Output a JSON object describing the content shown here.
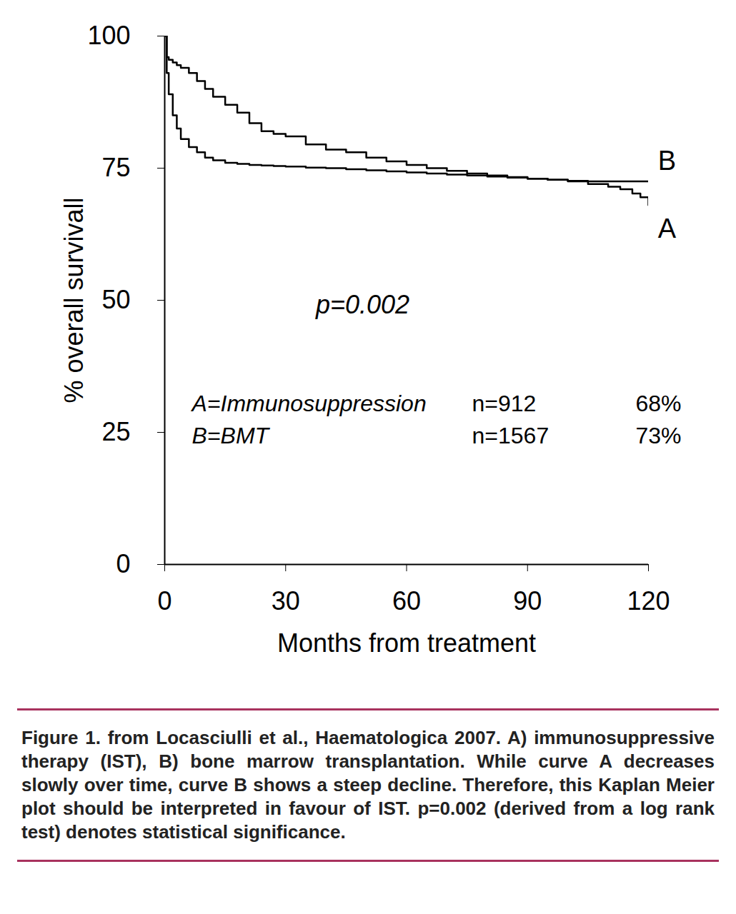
{
  "chart_data": {
    "type": "line",
    "x_label": "Months from treatment",
    "y_label": "% overall survivall",
    "xlim": [
      0,
      120
    ],
    "ylim": [
      0,
      100
    ],
    "xticks": [
      0,
      30,
      60,
      90,
      120
    ],
    "yticks": [
      0,
      25,
      50,
      75,
      100
    ],
    "grid": false,
    "line_style": "step",
    "x": [
      0,
      0.5,
      1,
      2,
      3,
      4,
      6,
      8,
      10,
      12,
      15,
      18,
      21,
      24,
      27,
      30,
      35,
      40,
      45,
      50,
      55,
      60,
      65,
      70,
      75,
      80,
      85,
      90,
      95,
      100,
      105,
      110,
      113,
      116,
      118,
      120
    ],
    "series": [
      {
        "name": "A",
        "color": "#000000",
        "values": [
          100,
          93,
          89,
          85,
          82.5,
          80.5,
          79,
          78,
          77,
          76.5,
          76,
          75.8,
          75.6,
          75.5,
          75.4,
          75.3,
          75.1,
          75,
          74.8,
          74.6,
          74.4,
          74.2,
          74,
          73.8,
          73.6,
          73.4,
          73.2,
          73,
          72.8,
          72.5,
          72,
          71.5,
          71,
          70.2,
          69.5,
          68
        ]
      },
      {
        "name": "B",
        "color": "#000000",
        "values": [
          100,
          96,
          95.5,
          95,
          94.5,
          94,
          93,
          91.5,
          90,
          88.5,
          87,
          85.5,
          83.5,
          82,
          81.5,
          81,
          79.5,
          78.5,
          78,
          77,
          76.3,
          75.6,
          75,
          74.5,
          74,
          73.6,
          73.3,
          73,
          72.8,
          72.6,
          72.5,
          72.5,
          72.5,
          72.5,
          72.5,
          72.5
        ]
      }
    ],
    "annotations": [
      "p=0.002"
    ],
    "table": {
      "rows": [
        [
          "A=Immunosuppression",
          "n=912",
          "68%"
        ],
        [
          "B=BMT",
          "n=1567",
          "73%"
        ]
      ]
    },
    "caption": "Figure 1. from Locasciulli et al., Haematologica 2007. A) immunosuppressive therapy (IST), B) bone marrow transplantation. While curve A decreases slowly over time, curve B shows a steep decline. Therefore, this Kaplan Meier plot should be interpreted in favour of IST. p=0.002 (derived from a log rank test) denotes statistical significance."
  }
}
